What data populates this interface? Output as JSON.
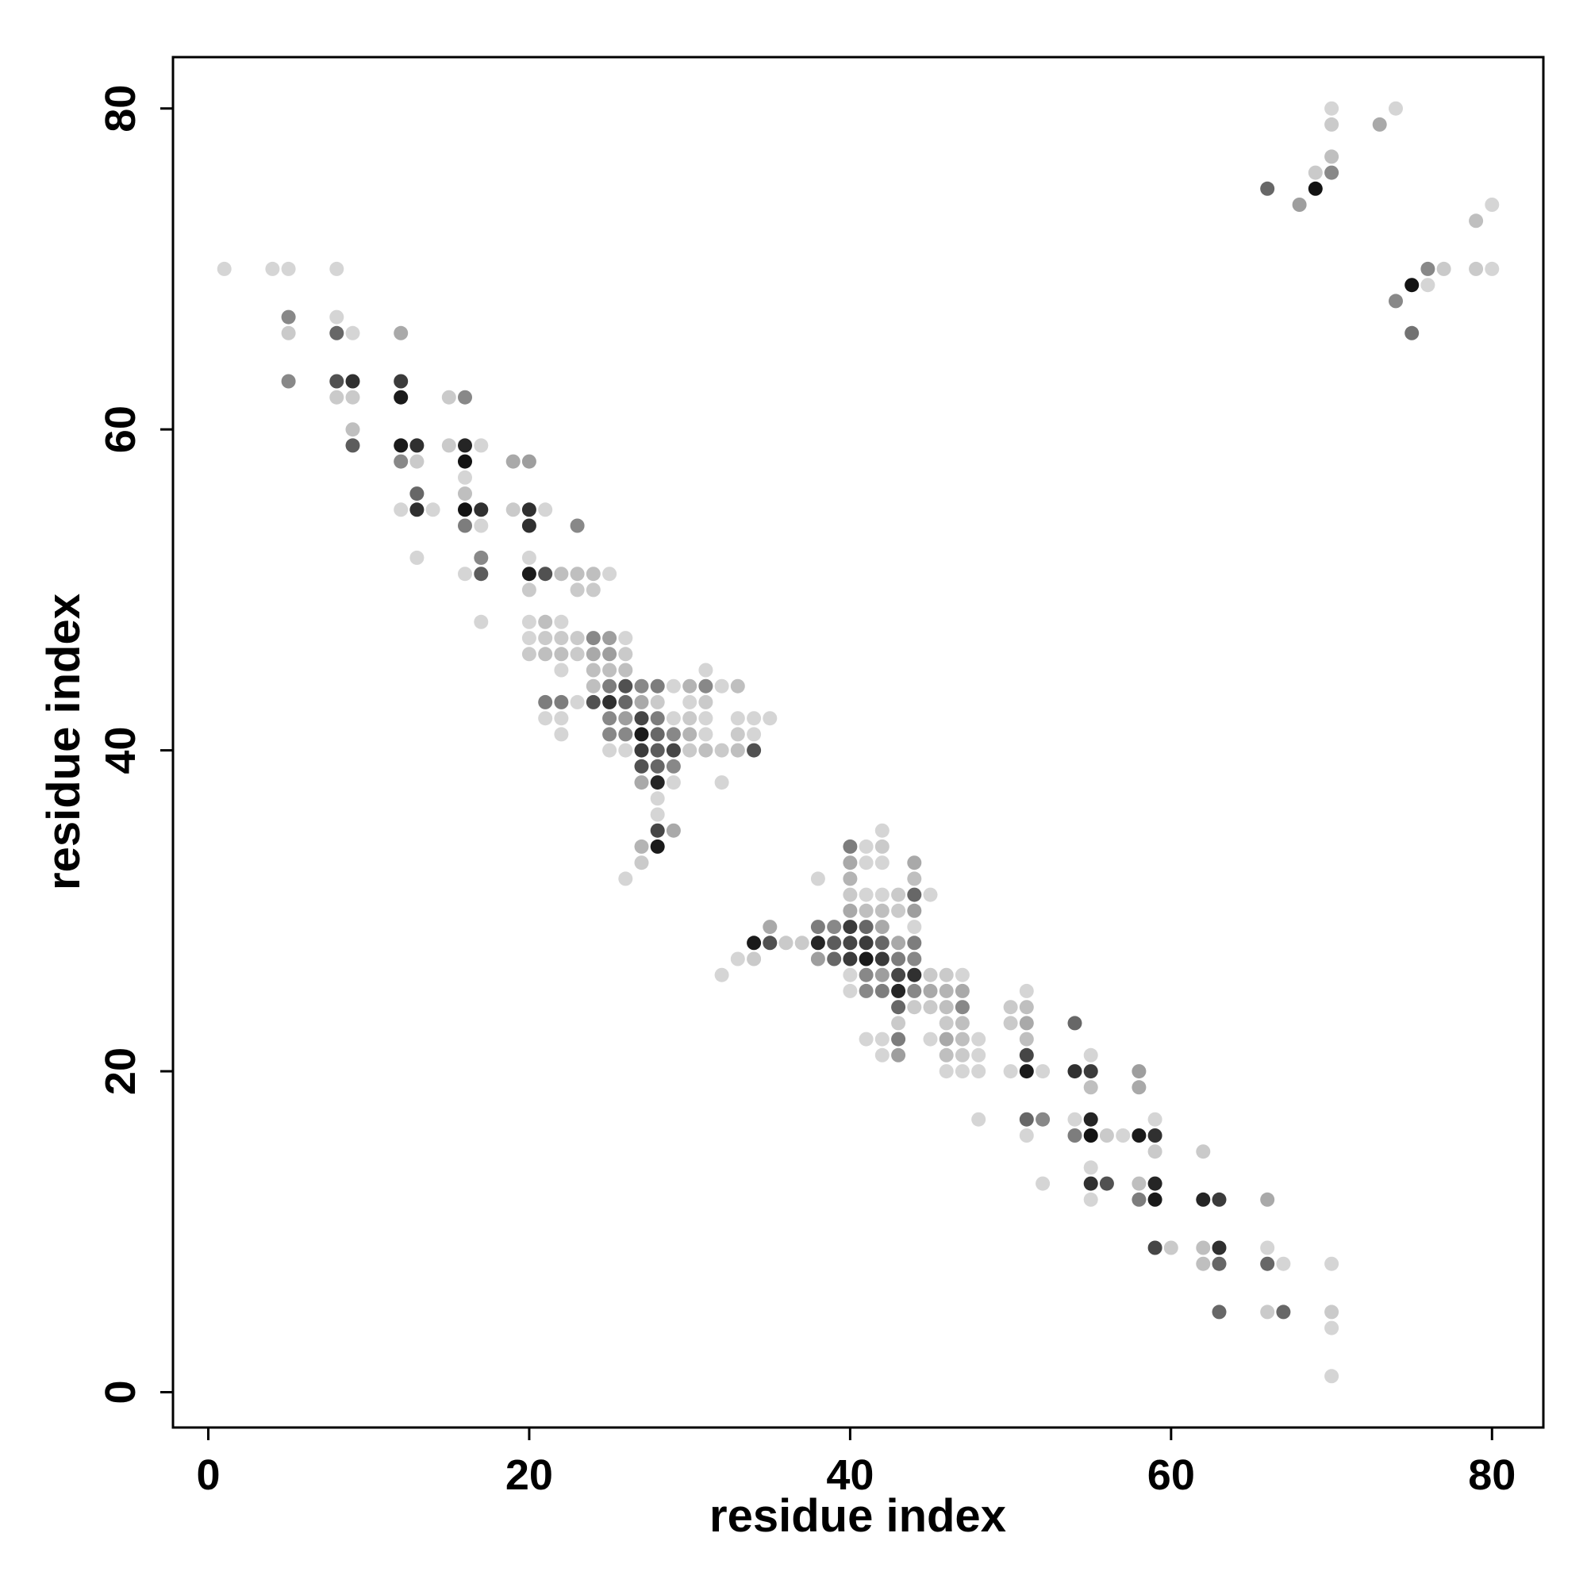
{
  "chart_data": {
    "type": "scatter",
    "title": "",
    "xlabel": "residue index",
    "ylabel": "residue index",
    "xlim": [
      -2.2,
      83.2
    ],
    "ylim": [
      -2.2,
      83.2
    ],
    "x_ticks": [
      0,
      20,
      40,
      60,
      80
    ],
    "y_ticks": [
      0,
      20,
      40,
      60,
      80
    ],
    "grid": false,
    "marker": "filled circle, grayscale intensity",
    "colors": {
      "strong": "#111111",
      "dark": "#3a3a3a",
      "medium": "#6e6e6e",
      "light": "#a6a6a6",
      "faint": "#d2d2d2",
      "faintest": "#e6e6e6"
    },
    "points": [
      [
        1,
        70,
        0.1
      ],
      [
        4,
        70,
        0.1
      ],
      [
        5,
        70,
        0.1
      ],
      [
        8,
        70,
        0.1
      ],
      [
        5,
        67,
        0.45
      ],
      [
        8,
        67,
        0.1
      ],
      [
        5,
        66,
        0.15
      ],
      [
        8,
        66,
        0.6
      ],
      [
        9,
        66,
        0.1
      ],
      [
        12,
        66,
        0.3
      ],
      [
        5,
        63,
        0.45
      ],
      [
        8,
        63,
        0.7
      ],
      [
        9,
        63,
        0.85
      ],
      [
        12,
        63,
        0.8
      ],
      [
        8,
        62,
        0.15
      ],
      [
        9,
        62,
        0.15
      ],
      [
        12,
        62,
        0.95
      ],
      [
        15,
        62,
        0.15
      ],
      [
        16,
        62,
        0.45
      ],
      [
        9,
        60,
        0.2
      ],
      [
        9,
        59,
        0.65
      ],
      [
        12,
        59,
        0.95
      ],
      [
        13,
        59,
        0.85
      ],
      [
        15,
        59,
        0.15
      ],
      [
        16,
        59,
        0.9
      ],
      [
        17,
        59,
        0.1
      ],
      [
        12,
        58,
        0.45
      ],
      [
        13,
        58,
        0.15
      ],
      [
        16,
        58,
        0.98
      ],
      [
        19,
        58,
        0.3
      ],
      [
        20,
        58,
        0.35
      ],
      [
        16,
        57,
        0.1
      ],
      [
        13,
        56,
        0.6
      ],
      [
        16,
        56,
        0.2
      ],
      [
        12,
        55,
        0.1
      ],
      [
        13,
        55,
        0.85
      ],
      [
        14,
        55,
        0.1
      ],
      [
        16,
        55,
        0.98
      ],
      [
        17,
        55,
        0.85
      ],
      [
        19,
        55,
        0.15
      ],
      [
        20,
        55,
        0.85
      ],
      [
        21,
        55,
        0.1
      ],
      [
        16,
        54,
        0.5
      ],
      [
        17,
        54,
        0.1
      ],
      [
        20,
        54,
        0.85
      ],
      [
        23,
        54,
        0.45
      ],
      [
        13,
        52,
        0.1
      ],
      [
        17,
        52,
        0.45
      ],
      [
        20,
        52,
        0.1
      ],
      [
        16,
        51,
        0.1
      ],
      [
        17,
        51,
        0.65
      ],
      [
        20,
        51,
        0.95
      ],
      [
        21,
        51,
        0.7
      ],
      [
        22,
        51,
        0.2
      ],
      [
        23,
        51,
        0.2
      ],
      [
        24,
        51,
        0.2
      ],
      [
        25,
        51,
        0.1
      ],
      [
        20,
        50,
        0.15
      ],
      [
        23,
        50,
        0.15
      ],
      [
        24,
        50,
        0.15
      ],
      [
        17,
        48,
        0.1
      ],
      [
        20,
        48,
        0.1
      ],
      [
        21,
        48,
        0.2
      ],
      [
        22,
        48,
        0.1
      ],
      [
        20,
        47,
        0.1
      ],
      [
        21,
        47,
        0.15
      ],
      [
        22,
        47,
        0.15
      ],
      [
        23,
        47,
        0.15
      ],
      [
        24,
        47,
        0.45
      ],
      [
        25,
        47,
        0.35
      ],
      [
        26,
        47,
        0.1
      ],
      [
        20,
        46,
        0.15
      ],
      [
        21,
        46,
        0.2
      ],
      [
        22,
        46,
        0.2
      ],
      [
        23,
        46,
        0.15
      ],
      [
        24,
        46,
        0.3
      ],
      [
        25,
        46,
        0.35
      ],
      [
        26,
        46,
        0.15
      ],
      [
        22,
        45,
        0.1
      ],
      [
        24,
        45,
        0.2
      ],
      [
        25,
        45,
        0.2
      ],
      [
        26,
        45,
        0.2
      ],
      [
        31,
        45,
        0.1
      ],
      [
        24,
        44,
        0.2
      ],
      [
        25,
        44,
        0.5
      ],
      [
        26,
        44,
        0.7
      ],
      [
        27,
        44,
        0.45
      ],
      [
        28,
        44,
        0.5
      ],
      [
        29,
        44,
        0.1
      ],
      [
        30,
        44,
        0.25
      ],
      [
        31,
        44,
        0.45
      ],
      [
        32,
        44,
        0.1
      ],
      [
        33,
        44,
        0.2
      ],
      [
        21,
        43,
        0.5
      ],
      [
        22,
        43,
        0.5
      ],
      [
        23,
        43,
        0.1
      ],
      [
        24,
        43,
        0.7
      ],
      [
        25,
        43,
        0.85
      ],
      [
        26,
        43,
        0.6
      ],
      [
        27,
        43,
        0.3
      ],
      [
        28,
        43,
        0.15
      ],
      [
        30,
        43,
        0.1
      ],
      [
        31,
        43,
        0.15
      ],
      [
        21,
        42,
        0.1
      ],
      [
        22,
        42,
        0.1
      ],
      [
        25,
        42,
        0.45
      ],
      [
        26,
        42,
        0.35
      ],
      [
        27,
        42,
        0.75
      ],
      [
        28,
        42,
        0.5
      ],
      [
        29,
        42,
        0.1
      ],
      [
        30,
        42,
        0.15
      ],
      [
        31,
        42,
        0.1
      ],
      [
        33,
        42,
        0.1
      ],
      [
        34,
        42,
        0.1
      ],
      [
        35,
        42,
        0.1
      ],
      [
        22,
        41,
        0.1
      ],
      [
        25,
        41,
        0.45
      ],
      [
        26,
        41,
        0.45
      ],
      [
        27,
        41,
        0.95
      ],
      [
        28,
        41,
        0.6
      ],
      [
        29,
        41,
        0.45
      ],
      [
        30,
        41,
        0.25
      ],
      [
        31,
        41,
        0.1
      ],
      [
        33,
        41,
        0.15
      ],
      [
        34,
        41,
        0.1
      ],
      [
        25,
        40,
        0.1
      ],
      [
        26,
        40,
        0.1
      ],
      [
        27,
        40,
        0.8
      ],
      [
        28,
        40,
        0.65
      ],
      [
        29,
        40,
        0.75
      ],
      [
        30,
        40,
        0.15
      ],
      [
        31,
        40,
        0.2
      ],
      [
        32,
        40,
        0.15
      ],
      [
        33,
        40,
        0.2
      ],
      [
        34,
        40,
        0.7
      ],
      [
        27,
        39,
        0.7
      ],
      [
        28,
        39,
        0.6
      ],
      [
        29,
        39,
        0.45
      ],
      [
        27,
        38,
        0.3
      ],
      [
        28,
        38,
        0.9
      ],
      [
        29,
        38,
        0.1
      ],
      [
        32,
        38,
        0.1
      ],
      [
        28,
        37,
        0.1
      ],
      [
        28,
        36,
        0.1
      ],
      [
        28,
        35,
        0.75
      ],
      [
        29,
        35,
        0.3
      ],
      [
        27,
        34,
        0.25
      ],
      [
        28,
        34,
        0.95
      ],
      [
        27,
        33,
        0.15
      ],
      [
        26,
        32,
        0.1
      ],
      [
        42,
        35,
        0.1
      ],
      [
        40,
        34,
        0.5
      ],
      [
        41,
        34,
        0.1
      ],
      [
        42,
        34,
        0.15
      ],
      [
        40,
        33,
        0.3
      ],
      [
        41,
        33,
        0.1
      ],
      [
        42,
        33,
        0.1
      ],
      [
        44,
        33,
        0.3
      ],
      [
        38,
        32,
        0.1
      ],
      [
        40,
        32,
        0.25
      ],
      [
        44,
        32,
        0.2
      ],
      [
        40,
        31,
        0.15
      ],
      [
        41,
        31,
        0.1
      ],
      [
        42,
        31,
        0.1
      ],
      [
        43,
        31,
        0.15
      ],
      [
        44,
        31,
        0.6
      ],
      [
        45,
        31,
        0.1
      ],
      [
        40,
        30,
        0.3
      ],
      [
        41,
        30,
        0.2
      ],
      [
        42,
        30,
        0.2
      ],
      [
        43,
        30,
        0.15
      ],
      [
        44,
        30,
        0.35
      ],
      [
        38,
        29,
        0.5
      ],
      [
        39,
        29,
        0.45
      ],
      [
        40,
        29,
        0.8
      ],
      [
        41,
        29,
        0.6
      ],
      [
        42,
        29,
        0.3
      ],
      [
        44,
        29,
        0.1
      ],
      [
        34,
        28,
        0.95
      ],
      [
        35,
        28,
        0.7
      ],
      [
        36,
        28,
        0.15
      ],
      [
        37,
        28,
        0.15
      ],
      [
        38,
        28,
        0.9
      ],
      [
        39,
        28,
        0.65
      ],
      [
        40,
        28,
        0.75
      ],
      [
        41,
        28,
        0.8
      ],
      [
        42,
        28,
        0.6
      ],
      [
        43,
        28,
        0.3
      ],
      [
        44,
        28,
        0.5
      ],
      [
        35,
        29,
        0.3
      ],
      [
        33,
        27,
        0.1
      ],
      [
        34,
        27,
        0.15
      ],
      [
        38,
        27,
        0.35
      ],
      [
        39,
        27,
        0.6
      ],
      [
        40,
        27,
        0.8
      ],
      [
        41,
        27,
        0.95
      ],
      [
        42,
        27,
        0.8
      ],
      [
        43,
        27,
        0.5
      ],
      [
        44,
        27,
        0.45
      ],
      [
        32,
        26,
        0.1
      ],
      [
        40,
        26,
        0.1
      ],
      [
        41,
        26,
        0.45
      ],
      [
        42,
        26,
        0.35
      ],
      [
        43,
        26,
        0.75
      ],
      [
        44,
        26,
        0.85
      ],
      [
        45,
        26,
        0.15
      ],
      [
        46,
        26,
        0.15
      ],
      [
        47,
        26,
        0.1
      ],
      [
        40,
        25,
        0.1
      ],
      [
        41,
        25,
        0.45
      ],
      [
        42,
        25,
        0.5
      ],
      [
        43,
        25,
        0.9
      ],
      [
        44,
        25,
        0.45
      ],
      [
        45,
        25,
        0.3
      ],
      [
        46,
        25,
        0.25
      ],
      [
        47,
        25,
        0.3
      ],
      [
        43,
        24,
        0.6
      ],
      [
        44,
        24,
        0.15
      ],
      [
        45,
        24,
        0.15
      ],
      [
        46,
        24,
        0.2
      ],
      [
        47,
        24,
        0.45
      ],
      [
        43,
        23,
        0.15
      ],
      [
        46,
        23,
        0.15
      ],
      [
        47,
        23,
        0.2
      ],
      [
        50,
        23,
        0.15
      ],
      [
        51,
        23,
        0.3
      ],
      [
        54,
        23,
        0.6
      ],
      [
        41,
        22,
        0.1
      ],
      [
        42,
        22,
        0.1
      ],
      [
        43,
        22,
        0.5
      ],
      [
        45,
        22,
        0.1
      ],
      [
        46,
        22,
        0.3
      ],
      [
        47,
        22,
        0.2
      ],
      [
        48,
        22,
        0.1
      ],
      [
        51,
        22,
        0.2
      ],
      [
        42,
        21,
        0.1
      ],
      [
        43,
        21,
        0.35
      ],
      [
        46,
        21,
        0.2
      ],
      [
        47,
        21,
        0.15
      ],
      [
        48,
        21,
        0.1
      ],
      [
        51,
        21,
        0.75
      ],
      [
        55,
        21,
        0.1
      ],
      [
        46,
        20,
        0.1
      ],
      [
        47,
        20,
        0.1
      ],
      [
        48,
        20,
        0.1
      ],
      [
        50,
        20,
        0.1
      ],
      [
        51,
        20,
        0.95
      ],
      [
        52,
        20,
        0.1
      ],
      [
        54,
        20,
        0.85
      ],
      [
        55,
        20,
        0.8
      ],
      [
        58,
        20,
        0.35
      ],
      [
        51,
        25,
        0.1
      ],
      [
        50,
        24,
        0.15
      ],
      [
        51,
        24,
        0.2
      ],
      [
        55,
        19,
        0.2
      ],
      [
        58,
        19,
        0.3
      ],
      [
        48,
        17,
        0.1
      ],
      [
        51,
        17,
        0.6
      ],
      [
        52,
        17,
        0.45
      ],
      [
        54,
        17,
        0.1
      ],
      [
        55,
        17,
        0.9
      ],
      [
        59,
        17,
        0.1
      ],
      [
        51,
        16,
        0.1
      ],
      [
        54,
        16,
        0.5
      ],
      [
        55,
        16,
        0.98
      ],
      [
        56,
        16,
        0.15
      ],
      [
        57,
        16,
        0.1
      ],
      [
        58,
        16,
        0.95
      ],
      [
        59,
        16,
        0.85
      ],
      [
        59,
        15,
        0.15
      ],
      [
        62,
        15,
        0.15
      ],
      [
        55,
        14,
        0.1
      ],
      [
        52,
        13,
        0.1
      ],
      [
        55,
        13,
        0.85
      ],
      [
        56,
        13,
        0.7
      ],
      [
        58,
        13,
        0.2
      ],
      [
        59,
        13,
        0.9
      ],
      [
        55,
        12,
        0.1
      ],
      [
        58,
        12,
        0.5
      ],
      [
        59,
        12,
        0.95
      ],
      [
        62,
        12,
        0.9
      ],
      [
        63,
        12,
        0.8
      ],
      [
        66,
        12,
        0.3
      ],
      [
        59,
        9,
        0.75
      ],
      [
        60,
        9,
        0.15
      ],
      [
        62,
        9,
        0.2
      ],
      [
        63,
        9,
        0.85
      ],
      [
        66,
        9,
        0.1
      ],
      [
        62,
        8,
        0.2
      ],
      [
        63,
        8,
        0.6
      ],
      [
        66,
        8,
        0.6
      ],
      [
        67,
        8,
        0.1
      ],
      [
        70,
        8,
        0.1
      ],
      [
        63,
        5,
        0.6
      ],
      [
        66,
        5,
        0.15
      ],
      [
        67,
        5,
        0.6
      ],
      [
        70,
        5,
        0.15
      ],
      [
        70,
        4,
        0.1
      ],
      [
        70,
        1,
        0.1
      ],
      [
        70,
        80,
        0.1
      ],
      [
        74,
        80,
        0.1
      ],
      [
        70,
        79,
        0.15
      ],
      [
        73,
        79,
        0.3
      ],
      [
        70,
        77,
        0.2
      ],
      [
        69,
        76,
        0.15
      ],
      [
        70,
        76,
        0.45
      ],
      [
        66,
        75,
        0.6
      ],
      [
        69,
        75,
        0.98
      ],
      [
        68,
        74,
        0.35
      ],
      [
        80,
        74,
        0.1
      ],
      [
        79,
        73,
        0.2
      ],
      [
        76,
        70,
        0.45
      ],
      [
        77,
        70,
        0.15
      ],
      [
        79,
        70,
        0.15
      ],
      [
        80,
        70,
        0.1
      ],
      [
        75,
        69,
        0.98
      ],
      [
        76,
        69,
        0.1
      ],
      [
        74,
        68,
        0.45
      ],
      [
        75,
        66,
        0.55
      ]
    ]
  }
}
